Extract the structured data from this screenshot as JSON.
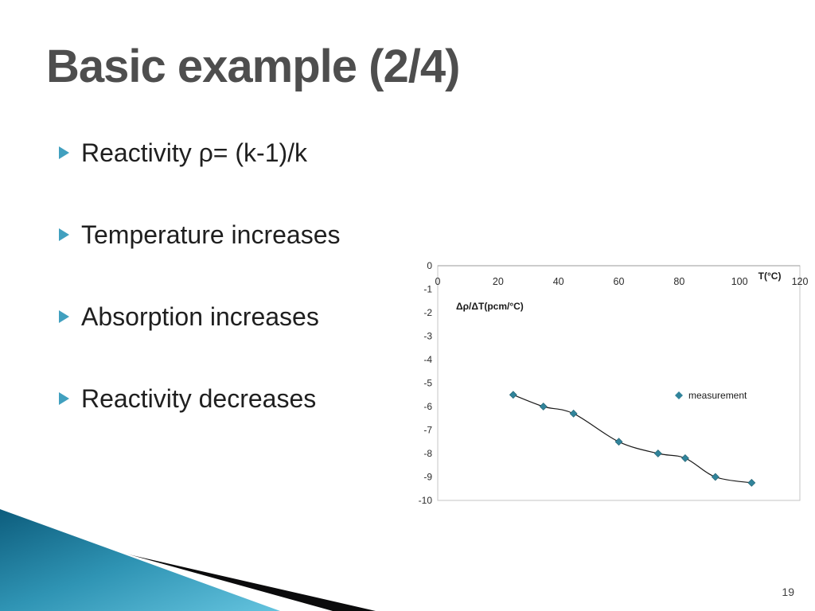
{
  "slide": {
    "title": "Basic example (2/4)",
    "page_number": "19",
    "bullets": [
      "Reactivity ρ= (k-1)/k",
      "Temperature increases",
      "Absorption increases",
      "Reactivity decreases"
    ]
  },
  "colors": {
    "title_text": "#4e4e4e",
    "body_text": "#1f1f1f",
    "bullet_marker": "#41a0bf",
    "series_teal": "#31849b",
    "decoration_teal_dark": "#0d5d7d",
    "decoration_teal_light": "#64c3de",
    "decoration_black": "#0b0b0c"
  },
  "chart_data": {
    "type": "scatter",
    "title": "",
    "xlabel": "T(°C)",
    "ylabel": "Δρ/ΔT(pcm/°C)",
    "xlim": [
      0,
      120
    ],
    "ylim": [
      -10,
      0
    ],
    "x_ticks": [
      0,
      20,
      40,
      60,
      80,
      100,
      120
    ],
    "y_ticks": [
      0,
      -1,
      -2,
      -3,
      -4,
      -5,
      -6,
      -7,
      -8,
      -9,
      -10
    ],
    "grid": false,
    "legend": {
      "label": "measurement",
      "marker": "diamond",
      "color": "#31849b",
      "position": "middle-right"
    },
    "series": [
      {
        "name": "measurement",
        "marker": "diamond",
        "color": "#31849b",
        "points": [
          [
            25,
            -5.5
          ],
          [
            35,
            -6.0
          ],
          [
            45,
            -6.3
          ],
          [
            60,
            -7.5
          ],
          [
            73,
            -8.0
          ],
          [
            82,
            -8.2
          ],
          [
            92,
            -9.0
          ],
          [
            104,
            -9.25
          ]
        ]
      }
    ],
    "trend_line": {
      "color": "#1a1a1a",
      "width": 1.2
    }
  }
}
